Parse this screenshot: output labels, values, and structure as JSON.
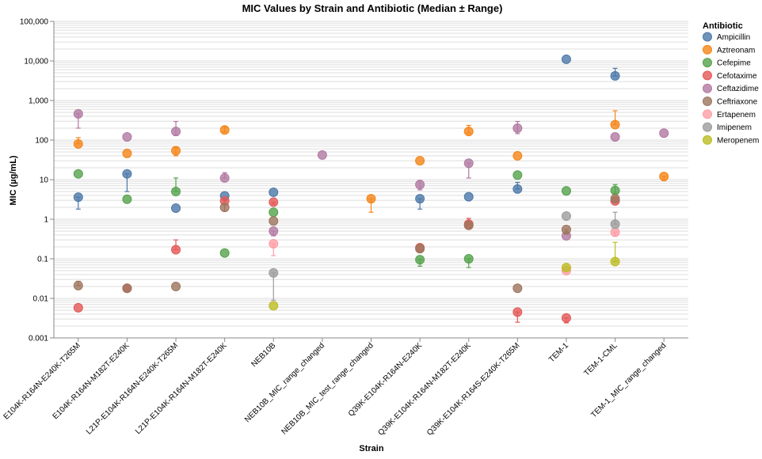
{
  "chart_data": {
    "type": "scatter",
    "title": "MIC Values by Strain and Antibiotic (Median ± Range)",
    "xlabel": "Strain",
    "ylabel": "MIC (µg/mL)",
    "yscale": "log",
    "ylim": [
      0.001,
      100000
    ],
    "y_ticks": [
      "0.001",
      "0.01",
      "0.1",
      "1",
      "10",
      "100",
      "1,000",
      "10,000",
      "100,000"
    ],
    "grid": true,
    "legend_title": "Antibiotic",
    "legend_position": "right",
    "categories": [
      "E104K-R164N-E240K-T265M",
      "E104K-R164N-M182T-E240K",
      "L21P-E104K-R164N-E240K-T265M",
      "L21P-E104K-R164N-M182T-E240K",
      "NEB10B",
      "NEB10B_MIC_range_changed",
      "NEB10B_MIC_test_range_changed",
      "Q39K-E104K-R164N-E240K",
      "Q39K-E104K-R164N-M182T-E240K",
      "Q39K-E104K-R164S-E240K-T265M",
      "TEM-1",
      "TEM-1-CML",
      "TEM-1_MIC_range_changed"
    ],
    "series": [
      {
        "name": "Ampicillin",
        "color": "#4c78a8",
        "points": [
          {
            "x": "E104K-R164N-E240K-T265M",
            "y": 3.6,
            "min": 1.8,
            "max": 3.6
          },
          {
            "x": "E104K-R164N-M182T-E240K",
            "y": 14,
            "min": 5,
            "max": 14
          },
          {
            "x": "L21P-E104K-R164N-E240K-T265M",
            "y": 1.9,
            "min": 1.9,
            "max": 1.9
          },
          {
            "x": "L21P-E104K-R164N-M182T-E240K",
            "y": 3.9,
            "min": 3.9,
            "max": 3.9
          },
          {
            "x": "NEB10B",
            "y": 4.8,
            "min": 4.8,
            "max": 4.8
          },
          {
            "x": "Q39K-E104K-R164N-E240K",
            "y": 3.3,
            "min": 1.8,
            "max": 3.3
          },
          {
            "x": "Q39K-E104K-R164N-M182T-E240K",
            "y": 3.7,
            "min": 3.7,
            "max": 3.7
          },
          {
            "x": "Q39K-E104K-R164S-E240K-T265M",
            "y": 5.8,
            "min": 5.8,
            "max": 8.5
          },
          {
            "x": "TEM-1",
            "y": 11000,
            "min": 11000,
            "max": 11000
          },
          {
            "x": "TEM-1-CML",
            "y": 4200,
            "min": 4200,
            "max": 6500
          }
        ]
      },
      {
        "name": "Aztreonam",
        "color": "#f58518",
        "points": [
          {
            "x": "E104K-R164N-E240K-T265M",
            "y": 80,
            "min": 80,
            "max": 115
          },
          {
            "x": "E104K-R164N-M182T-E240K",
            "y": 46,
            "min": 46,
            "max": 46
          },
          {
            "x": "L21P-E104K-R164N-E240K-T265M",
            "y": 54,
            "min": 40,
            "max": 65
          },
          {
            "x": "L21P-E104K-R164N-M182T-E240K",
            "y": 180,
            "min": 160,
            "max": 220
          },
          {
            "x": "NEB10B_MIC_test_range_changed",
            "y": 3.3,
            "min": 1.5,
            "max": 3.3
          },
          {
            "x": "Q39K-E104K-R164N-E240K",
            "y": 30,
            "min": 30,
            "max": 30
          },
          {
            "x": "Q39K-E104K-R164N-M182T-E240K",
            "y": 165,
            "min": 150,
            "max": 235
          },
          {
            "x": "Q39K-E104K-R164S-E240K-T265M",
            "y": 40,
            "min": 40,
            "max": 40
          },
          {
            "x": "TEM-1-CML",
            "y": 245,
            "min": 245,
            "max": 550
          },
          {
            "x": "TEM-1_MIC_range_changed",
            "y": 12,
            "min": 9.5,
            "max": 12
          }
        ]
      },
      {
        "name": "Cefepime",
        "color": "#54a24b",
        "points": [
          {
            "x": "E104K-R164N-E240K-T265M",
            "y": 14,
            "min": 14,
            "max": 14
          },
          {
            "x": "E104K-R164N-M182T-E240K",
            "y": 3.2,
            "min": 3.2,
            "max": 3.2
          },
          {
            "x": "L21P-E104K-R164N-E240K-T265M",
            "y": 5,
            "min": 5,
            "max": 11
          },
          {
            "x": "L21P-E104K-R164N-M182T-E240K",
            "y": 0.14,
            "min": 0.14,
            "max": 0.14
          },
          {
            "x": "NEB10B",
            "y": 1.5,
            "min": 1.5,
            "max": 1.5
          },
          {
            "x": "Q39K-E104K-R164N-E240K",
            "y": 0.095,
            "min": 0.065,
            "max": 0.095
          },
          {
            "x": "Q39K-E104K-R164N-M182T-E240K",
            "y": 0.1,
            "min": 0.06,
            "max": 0.1
          },
          {
            "x": "Q39K-E104K-R164S-E240K-T265M",
            "y": 13,
            "min": 13,
            "max": 13
          },
          {
            "x": "TEM-1",
            "y": 5.2,
            "min": 5.2,
            "max": 5.2
          },
          {
            "x": "TEM-1-CML",
            "y": 5.3,
            "min": 4.5,
            "max": 7.5
          }
        ]
      },
      {
        "name": "Cefotaxime",
        "color": "#e45756",
        "points": [
          {
            "x": "E104K-R164N-E240K-T265M",
            "y": 0.0058,
            "min": 0.0058,
            "max": 0.0058
          },
          {
            "x": "E104K-R164N-M182T-E240K",
            "y": 0.018,
            "min": 0.018,
            "max": 0.018
          },
          {
            "x": "L21P-E104K-R164N-E240K-T265M",
            "y": 0.17,
            "min": 0.17,
            "max": 0.3
          },
          {
            "x": "L21P-E104K-R164N-M182T-E240K",
            "y": 2.9,
            "min": 1.6,
            "max": 2.9
          },
          {
            "x": "NEB10B",
            "y": 2.7,
            "min": 2.4,
            "max": 2.7
          },
          {
            "x": "Q39K-E104K-R164N-E240K",
            "y": 0.19,
            "min": 0.19,
            "max": 0.19
          },
          {
            "x": "Q39K-E104K-R164N-M182T-E240K",
            "y": 0.75,
            "min": 0.75,
            "max": 1.05
          },
          {
            "x": "Q39K-E104K-R164S-E240K-T265M",
            "y": 0.0045,
            "min": 0.0025,
            "max": 0.0045
          },
          {
            "x": "TEM-1",
            "y": 0.0032,
            "min": 0.0024,
            "max": 0.0032
          },
          {
            "x": "TEM-1-CML",
            "y": 2.9,
            "min": 2.9,
            "max": 2.9
          }
        ]
      },
      {
        "name": "Ceftazidime",
        "color": "#b279a2",
        "points": [
          {
            "x": "E104K-R164N-E240K-T265M",
            "y": 460,
            "min": 200,
            "max": 460
          },
          {
            "x": "E104K-R164N-M182T-E240K",
            "y": 120,
            "min": 120,
            "max": 120
          },
          {
            "x": "L21P-E104K-R164N-E240K-T265M",
            "y": 165,
            "min": 130,
            "max": 295
          },
          {
            "x": "L21P-E104K-R164N-M182T-E240K",
            "y": 11,
            "min": 11,
            "max": 15
          },
          {
            "x": "NEB10B",
            "y": 0.5,
            "min": 0.38,
            "max": 0.5
          },
          {
            "x": "NEB10B_MIC_range_changed",
            "y": 42,
            "min": 42,
            "max": 42
          },
          {
            "x": "Q39K-E104K-R164N-E240K",
            "y": 7.5,
            "min": 5.5,
            "max": 9.5
          },
          {
            "x": "Q39K-E104K-R164N-M182T-E240K",
            "y": 26,
            "min": 11,
            "max": 26
          },
          {
            "x": "Q39K-E104K-R164S-E240K-T265M",
            "y": 200,
            "min": 145,
            "max": 295
          },
          {
            "x": "TEM-1",
            "y": 0.38,
            "min": 0.38,
            "max": 0.38
          },
          {
            "x": "TEM-1-CML",
            "y": 120,
            "min": 120,
            "max": 120
          },
          {
            "x": "TEM-1_MIC_range_changed",
            "y": 150,
            "min": 150,
            "max": 150
          }
        ]
      },
      {
        "name": "Ceftriaxone",
        "color": "#9d755d",
        "points": [
          {
            "x": "E104K-R164N-E240K-T265M",
            "y": 0.021,
            "min": 0.021,
            "max": 0.027
          },
          {
            "x": "E104K-R164N-M182T-E240K",
            "y": 0.018,
            "min": 0.018,
            "max": 0.018
          },
          {
            "x": "L21P-E104K-R164N-E240K-T265M",
            "y": 0.02,
            "min": 0.02,
            "max": 0.02
          },
          {
            "x": "L21P-E104K-R164N-M182T-E240K",
            "y": 2,
            "min": 2,
            "max": 2
          },
          {
            "x": "NEB10B",
            "y": 0.9,
            "min": 0.9,
            "max": 0.9
          },
          {
            "x": "Q39K-E104K-R164N-E240K",
            "y": 0.18,
            "min": 0.18,
            "max": 0.18
          },
          {
            "x": "Q39K-E104K-R164N-M182T-E240K",
            "y": 0.7,
            "min": 0.7,
            "max": 0.7
          },
          {
            "x": "Q39K-E104K-R164S-E240K-T265M",
            "y": 0.018,
            "min": 0.018,
            "max": 0.018
          },
          {
            "x": "TEM-1",
            "y": 0.55,
            "min": 0.42,
            "max": 0.55
          },
          {
            "x": "TEM-1-CML",
            "y": 3.3,
            "min": 3.3,
            "max": 3.3
          }
        ]
      },
      {
        "name": "Ertapenem",
        "color": "#ff9da6",
        "points": [
          {
            "x": "NEB10B",
            "y": 0.24,
            "min": 0.12,
            "max": 0.24
          },
          {
            "x": "TEM-1",
            "y": 0.05,
            "min": 0.05,
            "max": 0.05
          },
          {
            "x": "TEM-1-CML",
            "y": 0.47,
            "min": 0.37,
            "max": 0.47
          }
        ]
      },
      {
        "name": "Imipenem",
        "color": "#9c9c9c",
        "points": [
          {
            "x": "NEB10B",
            "y": 0.044,
            "min": 0.009,
            "max": 0.044
          },
          {
            "x": "TEM-1",
            "y": 1.2,
            "min": 1.2,
            "max": 1.2
          },
          {
            "x": "TEM-1-CML",
            "y": 0.75,
            "min": 0.75,
            "max": 1.5
          }
        ]
      },
      {
        "name": "Meropenem",
        "color": "#bcbd22",
        "points": [
          {
            "x": "NEB10B",
            "y": 0.0065,
            "min": 0.0065,
            "max": 0.0065
          },
          {
            "x": "TEM-1",
            "y": 0.06,
            "min": 0.06,
            "max": 0.06
          },
          {
            "x": "TEM-1-CML",
            "y": 0.085,
            "min": 0.085,
            "max": 0.26
          }
        ]
      }
    ]
  }
}
